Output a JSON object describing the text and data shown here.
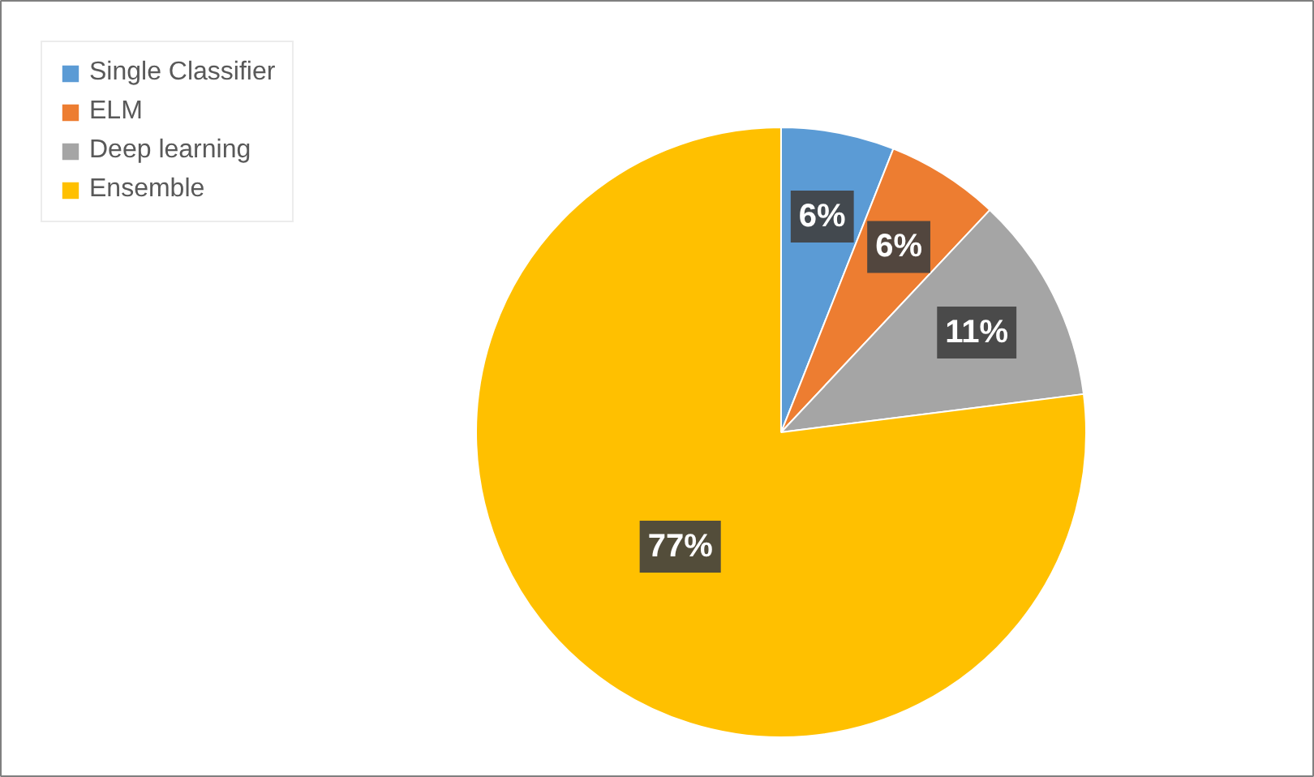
{
  "chart_data": {
    "type": "pie",
    "categories": [
      "Single Classifier",
      "ELM",
      "Deep learning",
      "Ensemble"
    ],
    "values": [
      6,
      6,
      11,
      77
    ],
    "colors": [
      "#5b9bd5",
      "#ed7d31",
      "#a5a5a5",
      "#ffc000"
    ],
    "value_labels": [
      "6%",
      "6%",
      "11%",
      "77%"
    ],
    "legend": "top left"
  }
}
